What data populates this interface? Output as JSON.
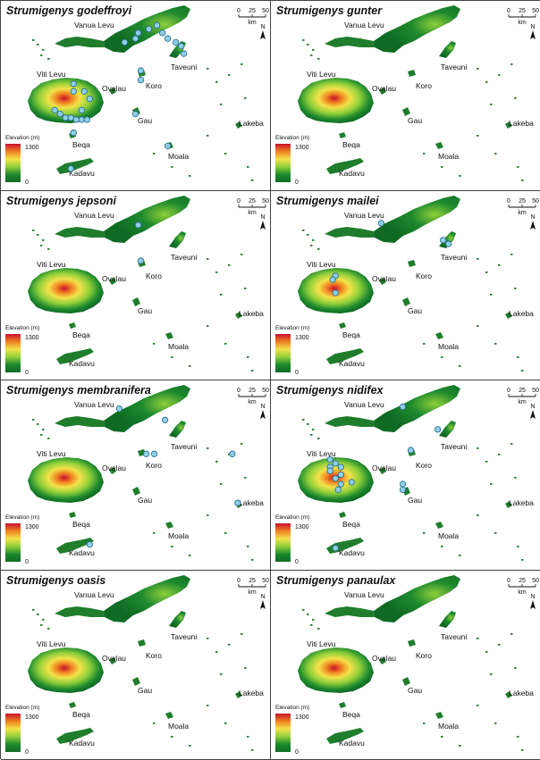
{
  "panels": [
    {
      "species": "Strumigenys godeffroyi",
      "records": [
        [
          0.51,
          0.17
        ],
        [
          0.55,
          0.15
        ],
        [
          0.58,
          0.13
        ],
        [
          0.6,
          0.17
        ],
        [
          0.62,
          0.2
        ],
        [
          0.5,
          0.2
        ],
        [
          0.46,
          0.22
        ],
        [
          0.65,
          0.22
        ],
        [
          0.67,
          0.24
        ],
        [
          0.68,
          0.28
        ],
        [
          0.52,
          0.37
        ],
        [
          0.52,
          0.42
        ],
        [
          0.27,
          0.44
        ],
        [
          0.27,
          0.48
        ],
        [
          0.31,
          0.48
        ],
        [
          0.33,
          0.52
        ],
        [
          0.3,
          0.58
        ],
        [
          0.22,
          0.6
        ],
        [
          0.24,
          0.62
        ],
        [
          0.26,
          0.62
        ],
        [
          0.28,
          0.63
        ],
        [
          0.3,
          0.63
        ],
        [
          0.32,
          0.63
        ],
        [
          0.2,
          0.58
        ],
        [
          0.27,
          0.7
        ],
        [
          0.5,
          0.6
        ],
        [
          0.62,
          0.77
        ],
        [
          0.26,
          0.89
        ]
      ]
    },
    {
      "species": "Strumigenys gunter",
      "records": []
    },
    {
      "species": "Strumigenys jepsoni",
      "records": [
        [
          0.51,
          0.18
        ],
        [
          0.52,
          0.37
        ]
      ]
    },
    {
      "species": "Strumigenys mailei",
      "records": [
        [
          0.41,
          0.17
        ],
        [
          0.64,
          0.26
        ],
        [
          0.66,
          0.28
        ],
        [
          0.24,
          0.45
        ],
        [
          0.23,
          0.47
        ],
        [
          0.24,
          0.54
        ]
      ]
    },
    {
      "species": "Strumigenys membranifera",
      "records": [
        [
          0.44,
          0.15
        ],
        [
          0.61,
          0.21
        ],
        [
          0.57,
          0.39
        ],
        [
          0.54,
          0.39
        ],
        [
          0.86,
          0.39
        ],
        [
          0.88,
          0.65
        ],
        [
          0.33,
          0.87
        ]
      ]
    },
    {
      "species": "Strumigenys nidifex",
      "records": [
        [
          0.49,
          0.14
        ],
        [
          0.62,
          0.26
        ],
        [
          0.52,
          0.37
        ],
        [
          0.22,
          0.42
        ],
        [
          0.24,
          0.44
        ],
        [
          0.22,
          0.46
        ],
        [
          0.26,
          0.46
        ],
        [
          0.22,
          0.48
        ],
        [
          0.26,
          0.5
        ],
        [
          0.24,
          0.52
        ],
        [
          0.26,
          0.55
        ],
        [
          0.25,
          0.58
        ],
        [
          0.3,
          0.54
        ],
        [
          0.49,
          0.55
        ],
        [
          0.49,
          0.58
        ],
        [
          0.24,
          0.89
        ]
      ]
    },
    {
      "species": "Strumigenys oasis",
      "records": []
    },
    {
      "species": "Strumigenys panaulax",
      "records": []
    }
  ],
  "place_labels": {
    "vanua_levu": "Vanua Levu",
    "viti_levu": "Viti Levu",
    "taveuni": "Taveuni",
    "ovalau": "Ovalau",
    "koro": "Koro",
    "gau": "Gau",
    "lakeba": "Lakeba",
    "beqa": "Beqa",
    "moala": "Moala",
    "kadavu": "Kadavu"
  },
  "legend": {
    "title": "Elevation (m)",
    "max_label": "1300",
    "min_label": "0",
    "colors": [
      "#c8102e",
      "#f08020",
      "#f2e34a",
      "#8fcf3a",
      "#1e8a2e",
      "#0f6a24"
    ]
  },
  "scale_bar": {
    "ticks": [
      "0",
      "25",
      "50"
    ],
    "unit": "km"
  },
  "north_arrow": {
    "label": "N"
  },
  "styles": {
    "record_fill": "#8fd0e8",
    "record_stroke": "#2d6f94",
    "lowland": "#1f7d2c"
  }
}
